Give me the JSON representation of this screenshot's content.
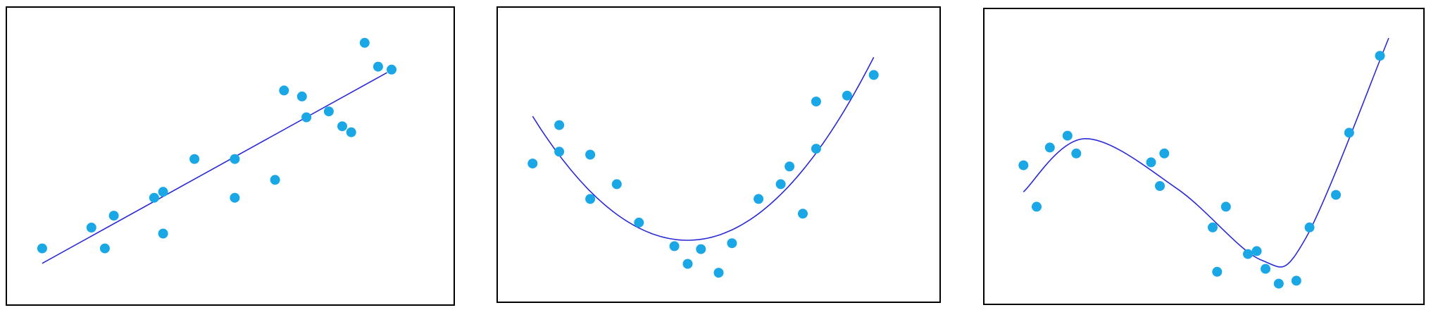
{
  "chart_data": [
    {
      "type": "scatter",
      "title": "",
      "xlabel": "",
      "ylabel": "",
      "grid": false,
      "xlim": [
        0,
        100
      ],
      "ylim": [
        0,
        100
      ],
      "points": [
        {
          "x": 8,
          "y": 19
        },
        {
          "x": 19,
          "y": 26
        },
        {
          "x": 22,
          "y": 19
        },
        {
          "x": 24,
          "y": 30
        },
        {
          "x": 33,
          "y": 36
        },
        {
          "x": 35,
          "y": 38
        },
        {
          "x": 35,
          "y": 24
        },
        {
          "x": 42,
          "y": 49
        },
        {
          "x": 51,
          "y": 49
        },
        {
          "x": 51,
          "y": 36
        },
        {
          "x": 60,
          "y": 42
        },
        {
          "x": 62,
          "y": 72
        },
        {
          "x": 66,
          "y": 70
        },
        {
          "x": 67,
          "y": 63
        },
        {
          "x": 72,
          "y": 65
        },
        {
          "x": 75,
          "y": 60
        },
        {
          "x": 77,
          "y": 58
        },
        {
          "x": 80,
          "y": 88
        },
        {
          "x": 83,
          "y": 80
        },
        {
          "x": 86,
          "y": 79
        }
      ],
      "fit": {
        "kind": "linear",
        "x": [
          8,
          85
        ],
        "y": [
          14,
          78
        ]
      },
      "colors": {
        "points": "#1aa7e6",
        "fit": "#2a2ad6",
        "frame": "#000000"
      }
    },
    {
      "type": "scatter",
      "title": "",
      "xlabel": "",
      "ylabel": "",
      "grid": false,
      "xlim": [
        0,
        100
      ],
      "ylim": [
        0,
        100
      ],
      "points": [
        {
          "x": 8,
          "y": 47
        },
        {
          "x": 14,
          "y": 60
        },
        {
          "x": 14,
          "y": 51
        },
        {
          "x": 21,
          "y": 50
        },
        {
          "x": 21,
          "y": 35
        },
        {
          "x": 27,
          "y": 40
        },
        {
          "x": 32,
          "y": 27
        },
        {
          "x": 40,
          "y": 19
        },
        {
          "x": 43,
          "y": 13
        },
        {
          "x": 46,
          "y": 18
        },
        {
          "x": 50,
          "y": 10
        },
        {
          "x": 53,
          "y": 20
        },
        {
          "x": 59,
          "y": 35
        },
        {
          "x": 64,
          "y": 40
        },
        {
          "x": 66,
          "y": 46
        },
        {
          "x": 69,
          "y": 30
        },
        {
          "x": 72,
          "y": 52
        },
        {
          "x": 72,
          "y": 68
        },
        {
          "x": 79,
          "y": 70
        },
        {
          "x": 85,
          "y": 77
        }
      ],
      "fit": {
        "kind": "quadratic",
        "x": [
          8,
          85
        ],
        "vertex": {
          "x": 43,
          "y": 21
        },
        "y_left": 63,
        "y_right": 83
      },
      "colors": {
        "points": "#1aa7e6",
        "fit": "#2a2ad6",
        "frame": "#000000"
      }
    },
    {
      "type": "scatter",
      "title": "",
      "xlabel": "",
      "ylabel": "",
      "grid": false,
      "xlim": [
        0,
        100
      ],
      "ylim": [
        0,
        100
      ],
      "points": [
        {
          "x": 9,
          "y": 47
        },
        {
          "x": 12,
          "y": 33
        },
        {
          "x": 15,
          "y": 53
        },
        {
          "x": 19,
          "y": 57
        },
        {
          "x": 21,
          "y": 51
        },
        {
          "x": 38,
          "y": 48
        },
        {
          "x": 40,
          "y": 40
        },
        {
          "x": 41,
          "y": 51
        },
        {
          "x": 52,
          "y": 26
        },
        {
          "x": 53,
          "y": 11
        },
        {
          "x": 55,
          "y": 33
        },
        {
          "x": 60,
          "y": 17
        },
        {
          "x": 62,
          "y": 18
        },
        {
          "x": 64,
          "y": 12
        },
        {
          "x": 67,
          "y": 7
        },
        {
          "x": 71,
          "y": 8
        },
        {
          "x": 74,
          "y": 26
        },
        {
          "x": 80,
          "y": 37
        },
        {
          "x": 83,
          "y": 58
        },
        {
          "x": 90,
          "y": 84
        }
      ],
      "fit": {
        "kind": "cubic",
        "x": [
          9,
          92
        ],
        "knots": [
          [
            9,
            38
          ],
          [
            23,
            56
          ],
          [
            44,
            39
          ],
          [
            63,
            15
          ],
          [
            73,
            22
          ],
          [
            92,
            90
          ]
        ]
      },
      "colors": {
        "points": "#1aa7e6",
        "fit": "#2a2ad6",
        "frame": "#000000"
      }
    }
  ]
}
